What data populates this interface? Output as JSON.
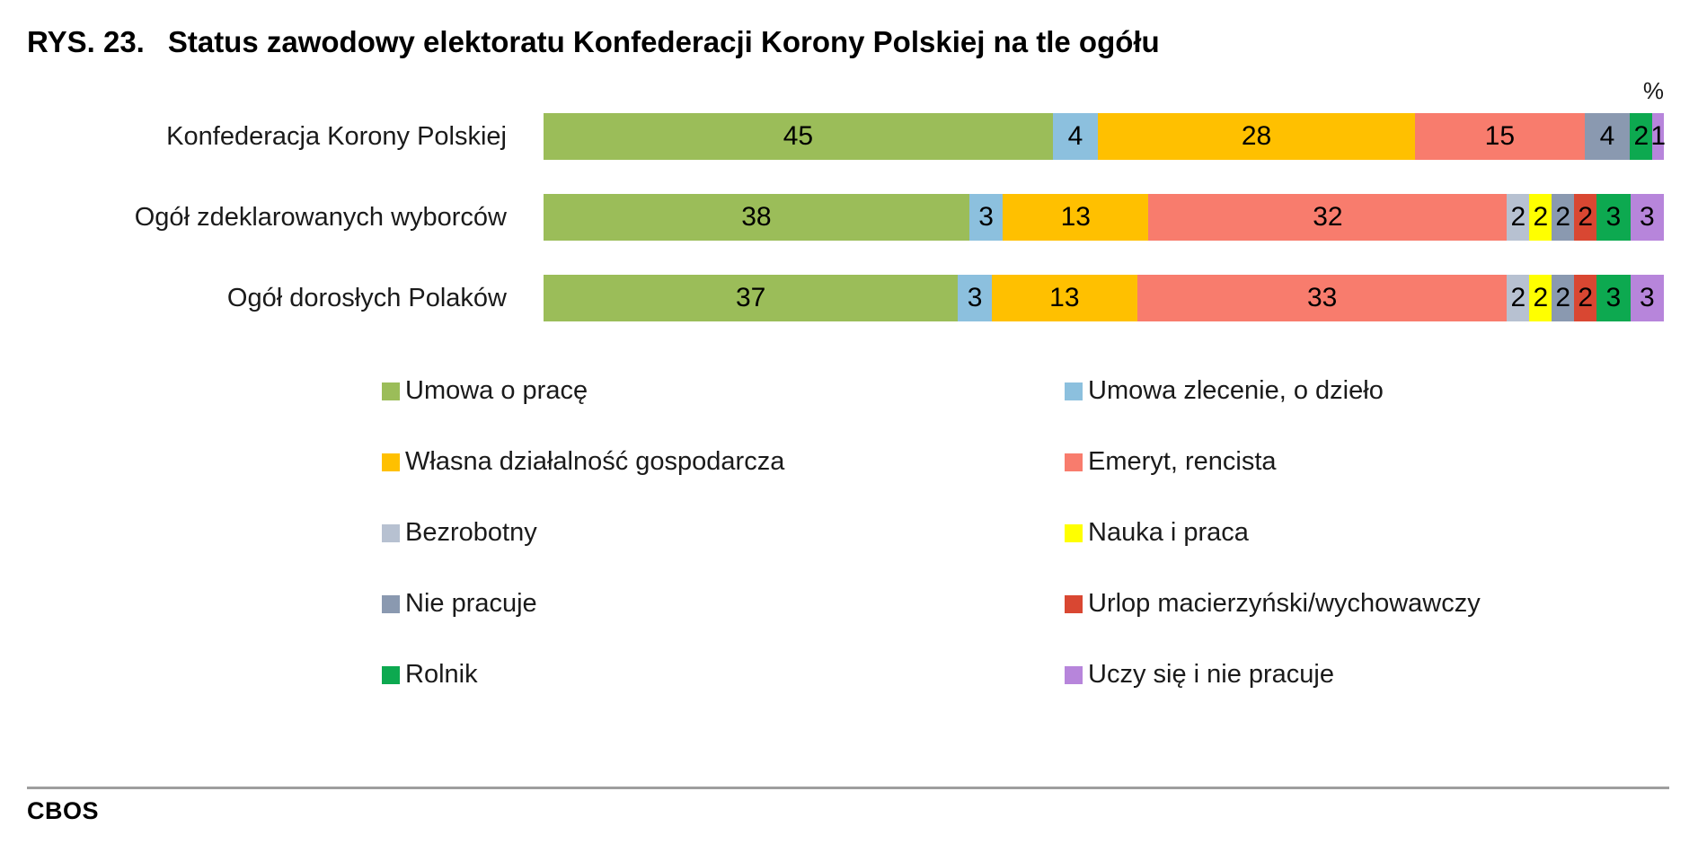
{
  "header": {
    "figure_number": "RYS. 23.",
    "title": "Status zawodowy elektoratu Konfederacji Korony Polskiej na tle ogółu",
    "unit_label": "%"
  },
  "chart_data": {
    "type": "bar",
    "orientation": "horizontal",
    "stacked": true,
    "unit": "%",
    "value_labels": true,
    "zero_values_hidden": true,
    "legend_position": "bottom",
    "legend_columns": 2,
    "categories": [
      "Konfederacja Korony Polskiej",
      "Ogół zdeklarowanych wyborców",
      "Ogół dorosłych Polaków"
    ],
    "series": [
      {
        "name": "Umowa o pracę",
        "color": "#9BBD59",
        "values": [
          45,
          38,
          37
        ]
      },
      {
        "name": "Umowa zlecenie, o dzieło",
        "color": "#8CC0DE",
        "values": [
          4,
          3,
          3
        ]
      },
      {
        "name": "Własna działalność gospodarcza",
        "color": "#FFC000",
        "values": [
          28,
          13,
          13
        ]
      },
      {
        "name": "Emeryt, rencista",
        "color": "#F87C6D",
        "values": [
          15,
          32,
          33
        ]
      },
      {
        "name": "Bezrobotny",
        "color": "#B7C1D1",
        "values": [
          0,
          2,
          2
        ]
      },
      {
        "name": "Nauka i praca",
        "color": "#FFFF00",
        "values": [
          0,
          2,
          2
        ]
      },
      {
        "name": "Nie pracuje",
        "color": "#8A99B0",
        "values": [
          4,
          2,
          2
        ]
      },
      {
        "name": "Urlop macierzyński/wychowawczy",
        "color": "#D94732",
        "values": [
          0,
          2,
          2
        ]
      },
      {
        "name": "Rolnik",
        "color": "#0DA950",
        "values": [
          2,
          3,
          3
        ]
      },
      {
        "name": "Uczy się i nie pracuje",
        "color": "#B785DB",
        "values": [
          1,
          3,
          3
        ]
      }
    ]
  },
  "footer": {
    "source": "CBOS"
  }
}
